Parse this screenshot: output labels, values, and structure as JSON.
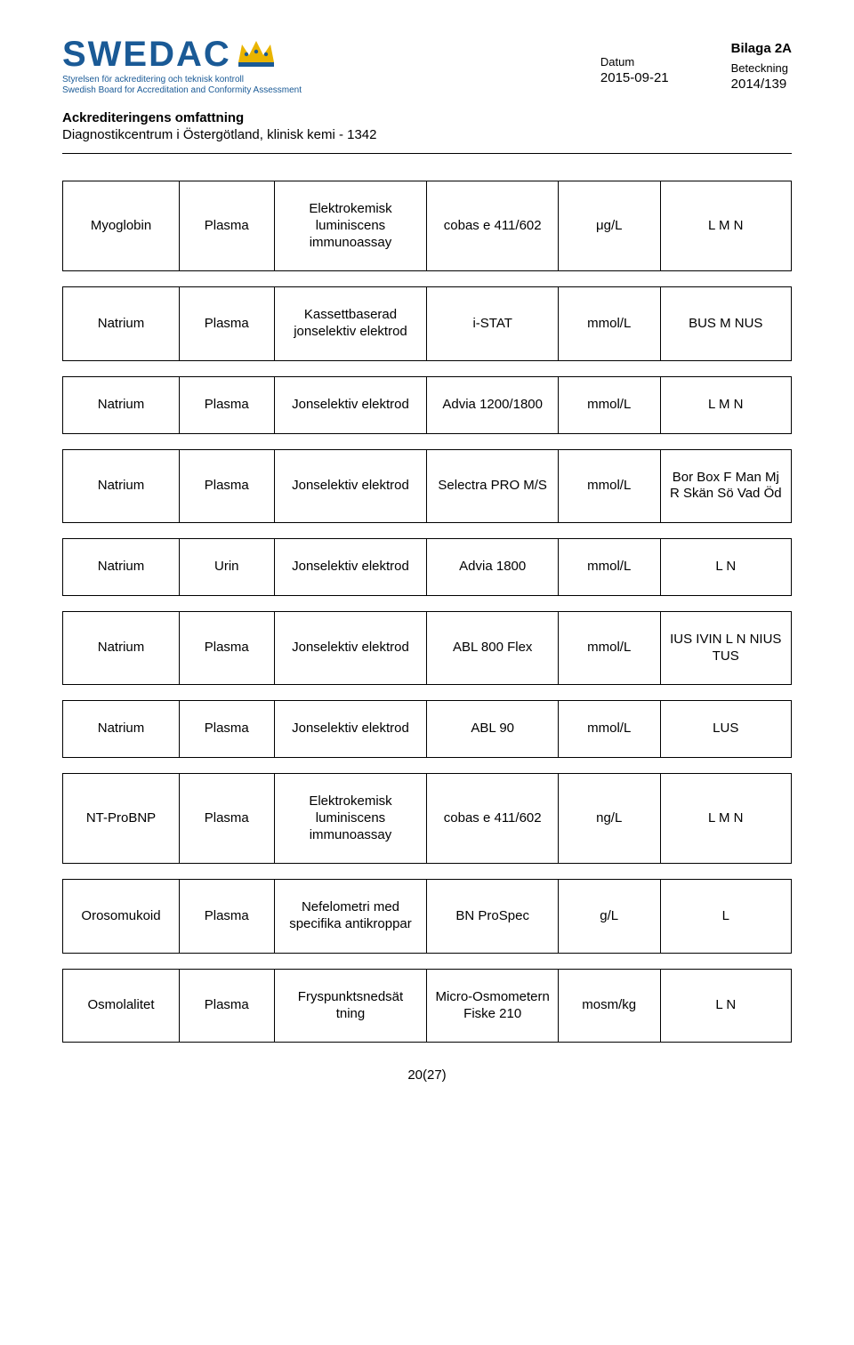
{
  "header": {
    "logo_text": "SWEDAC",
    "logo_sub1": "Styrelsen för ackreditering och teknisk kontroll",
    "logo_sub2": "Swedish Board for Accreditation and Conformity Assessment",
    "bilaga": "Bilaga 2A",
    "datum_label": "Datum",
    "datum_value": "2015-09-21",
    "beteckning_label": "Beteckning",
    "beteckning_value": "2014/139"
  },
  "title": "Ackrediteringens omfattning",
  "subtitle": "Diagnostikcentrum i Östergötland, klinisk kemi - 1342",
  "columns_count": 6,
  "col_widths_pct": [
    16,
    13,
    21,
    18,
    14,
    18
  ],
  "rows": [
    [
      "Myoglobin",
      "Plasma",
      "Elektrokemisk luminiscens immunoassay",
      "cobas e 411/602",
      "μg/L",
      "L M N"
    ],
    [
      "Natrium",
      "Plasma",
      "Kassettbaserad jonselektiv elektrod",
      "i-STAT",
      "mmol/L",
      "BUS M NUS"
    ],
    [
      "Natrium",
      "Plasma",
      "Jonselektiv elektrod",
      "Advia 1200/1800",
      "mmol/L",
      "L M N"
    ],
    [
      "Natrium",
      "Plasma",
      "Jonselektiv elektrod",
      "Selectra PRO M/S",
      "mmol/L",
      "Bor Box F Man Mj R Skän Sö Vad Öd"
    ],
    [
      "Natrium",
      "Urin",
      "Jonselektiv elektrod",
      "Advia 1800",
      "mmol/L",
      "L N"
    ],
    [
      "Natrium",
      "Plasma",
      "Jonselektiv elektrod",
      "ABL 800 Flex",
      "mmol/L",
      "IUS IVIN L N NIUS TUS"
    ],
    [
      "Natrium",
      "Plasma",
      "Jonselektiv elektrod",
      "ABL 90",
      "mmol/L",
      "LUS"
    ],
    [
      "NT-ProBNP",
      "Plasma",
      "Elektrokemisk luminiscens immunoassay",
      "cobas e 411/602",
      "ng/L",
      "L M N"
    ],
    [
      "Orosomukoid",
      "Plasma",
      "Nefelometri med specifika antikroppar",
      "BN ProSpec",
      "g/L",
      "L"
    ],
    [
      "Osmolalitet",
      "Plasma",
      "Fryspunktsnedsät tning",
      "Micro-Osmometern Fiske 210",
      "mosm/kg",
      "L N"
    ]
  ],
  "footer_page": "20(27)",
  "colors": {
    "brand_blue": "#1a5a96",
    "crown_gold": "#e9b400",
    "crown_blue": "#1a5a96",
    "text": "#000000",
    "background": "#ffffff",
    "border": "#000000"
  }
}
